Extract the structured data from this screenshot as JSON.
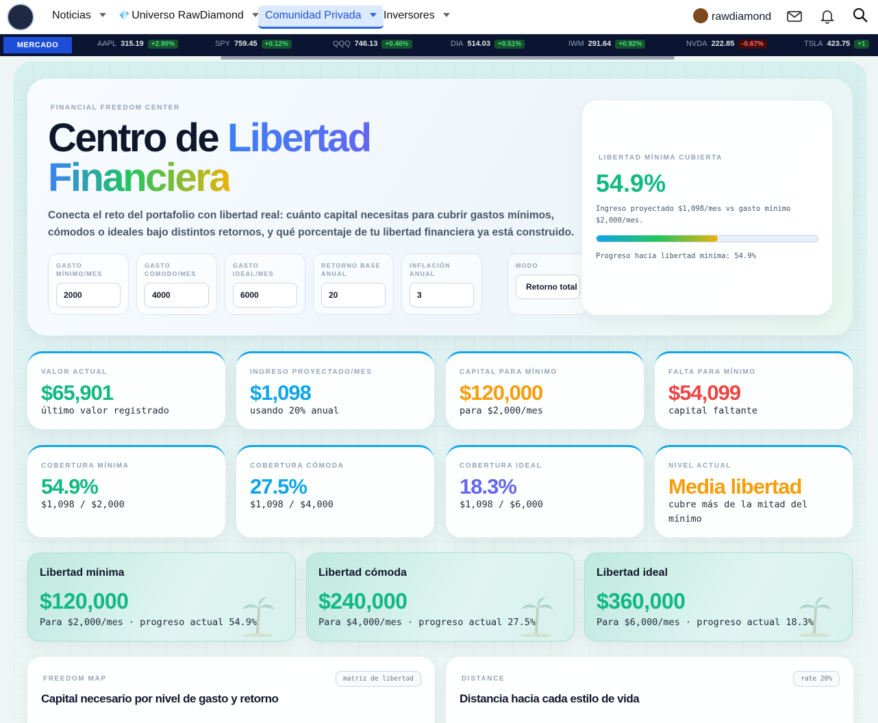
{
  "nav": {
    "items": [
      "Noticias",
      "Universo RawDiamond",
      "Comunidad Privada",
      "Inversores"
    ],
    "active": 2,
    "user": "rawdiamond"
  },
  "ticker": {
    "label": "MERCADO",
    "items": [
      {
        "symbol": "AAPL",
        "price": "315.19",
        "change": "+2.90%"
      },
      {
        "symbol": "SPY",
        "price": "759.45",
        "change": "+0.12%"
      },
      {
        "symbol": "QQQ",
        "price": "746.13",
        "change": "+0.46%"
      },
      {
        "symbol": "DIA",
        "price": "514.03",
        "change": "+0.51%"
      },
      {
        "symbol": "IWM",
        "price": "291.64",
        "change": "+0.92%"
      },
      {
        "symbol": "NVDA",
        "price": "222.85",
        "change": "-0.67%"
      },
      {
        "symbol": "TSLA",
        "price": "423.75",
        "change": "+1"
      }
    ]
  },
  "hero": {
    "eyebrow": "FINANCIAL FREEDOM CENTER",
    "title_dark": "Centro de",
    "title_blue": "Libertad",
    "title_rainbow": "Financiera",
    "description": "Conecta el reto del portafolio con libertad real: cuánto capital necesitas para cubrir gastos mínimos, cómodos o ideales bajo distintos retornos, y qué porcentaje de tu libertad financiera ya está construido.",
    "inputs": [
      {
        "label": "GASTO MÍNIMO/MES",
        "value": "2000"
      },
      {
        "label": "GASTO CÓMODO/MES",
        "value": "4000"
      },
      {
        "label": "GASTO IDEAL/MES",
        "value": "6000"
      },
      {
        "label": "RETORNO BASE ANUAL",
        "value": "20"
      },
      {
        "label": "INFLACIÓN ANUAL",
        "value": "3"
      }
    ],
    "mode": {
      "label": "MODO",
      "value": "Retorno total"
    }
  },
  "summary": {
    "label": "LIBERTAD MÍNIMA CUBIERTA",
    "value": "54.9%",
    "note": "Ingreso proyectado $1,098/mes vs gasto mínimo $2,000/mes.",
    "progress": 54.9,
    "progress_max": 100,
    "footer": "Progreso hacia libertad mínima: 54.9%"
  },
  "stats": [
    {
      "label": "VALOR ACTUAL",
      "value": "$65,901",
      "sub": "último valor registrado",
      "color": "#10b981"
    },
    {
      "label": "INGRESO PROYECTADO/MES",
      "value": "$1,098",
      "sub": "usando 20% anual",
      "color": "#0ea5e9"
    },
    {
      "label": "CAPITAL PARA MÍNIMO",
      "value": "$120,000",
      "sub": "para $2,000/mes",
      "color": "#f59e0b"
    },
    {
      "label": "FALTA PARA MÍNIMO",
      "value": "$54,099",
      "sub": "capital faltante",
      "color": "#ef4444"
    },
    {
      "label": "COBERTURA MÍNIMA",
      "value": "54.9%",
      "sub": "$1,098 / $2,000",
      "color": "#10b981"
    },
    {
      "label": "COBERTURA CÓMODA",
      "value": "27.5%",
      "sub": "$1,098 / $4,000",
      "color": "#0ea5e9"
    },
    {
      "label": "COBERTURA IDEAL",
      "value": "18.3%",
      "sub": "$1,098 / $6,000",
      "color": "#6366f1"
    },
    {
      "label": "NIVEL ACTUAL",
      "value": "Media libertad",
      "sub": "cubre más de la mitad del mínimo",
      "color": "#f59e0b"
    }
  ],
  "targets": [
    {
      "title": "Libertad mínima",
      "value": "$120,000",
      "sub": "Para $2,000/mes · progreso actual 54.9%"
    },
    {
      "title": "Libertad cómoda",
      "value": "$240,000",
      "sub": "Para $4,000/mes · progreso actual 27.5%"
    },
    {
      "title": "Libertad ideal",
      "value": "$360,000",
      "sub": "Para $6,000/mes · progreso actual 18.3%"
    }
  ],
  "sections": [
    {
      "eyebrow": "FREEDOM MAP",
      "badge": "matriz de libertad",
      "title": "Capital necesario por nivel de gasto y retorno"
    },
    {
      "eyebrow": "DISTANCE",
      "badge": "rate 20%",
      "title": "Distancia hacia cada estilo de vida"
    }
  ]
}
